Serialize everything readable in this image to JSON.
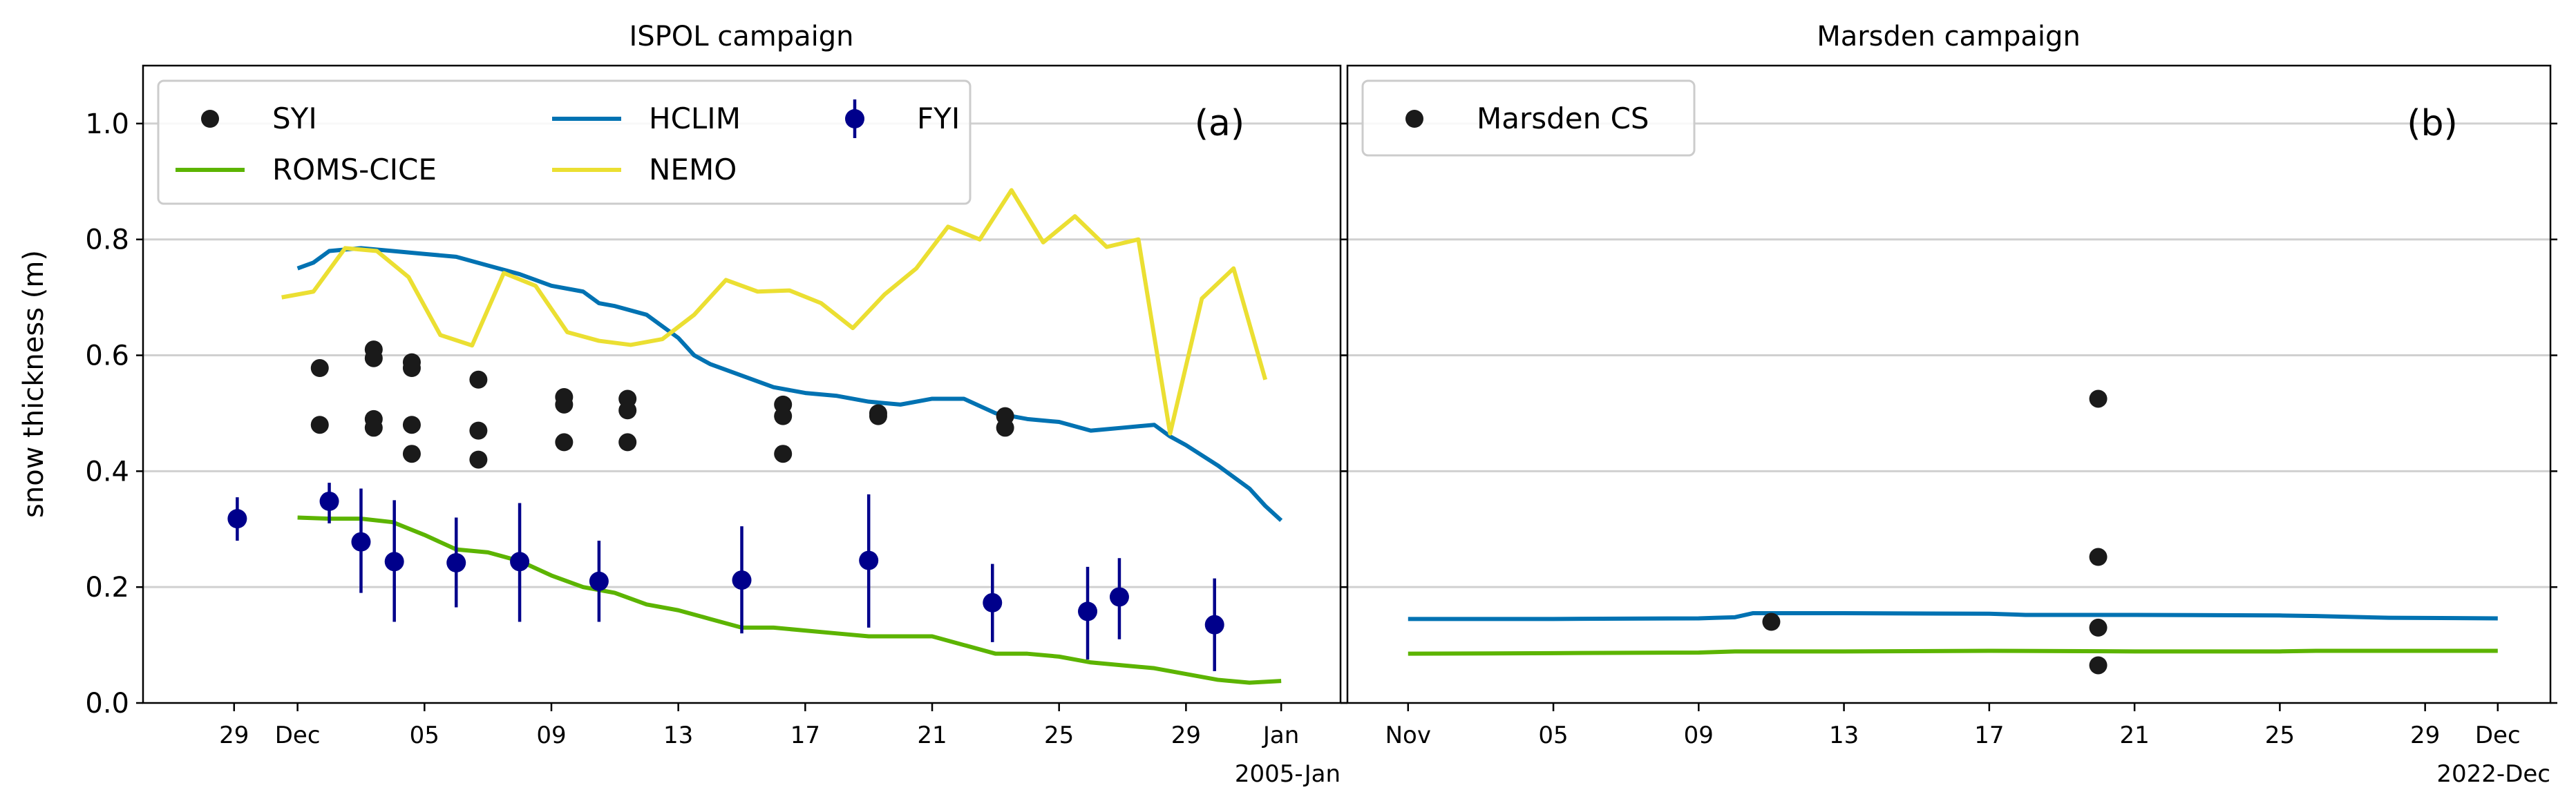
{
  "colors": {
    "SYI": "#1a1a1a",
    "FYI": "#00008b",
    "HCLIM": "#0072b2",
    "ROMS-CICE": "#5cb400",
    "NEMO": "#ebdf32",
    "Marsden CS": "#1a1a1a",
    "grid": "#d0d0d0"
  },
  "chart_data": [
    {
      "type": "line",
      "title": "ISPOL campaign",
      "panel_label": "(a)",
      "ylabel": "snow thickness (m)",
      "xlabel": "",
      "x_units": "days since 2004-12-01",
      "xlim": [
        -4.87,
        32.87
      ],
      "ylim": [
        0,
        1.1
      ],
      "yticks": [
        0.0,
        0.2,
        0.4,
        0.6,
        0.8,
        1.0
      ],
      "ytick_labels": [
        "0.0",
        "0.2",
        "0.4",
        "0.6",
        "0.8",
        "1.0"
      ],
      "xticks": [
        -2,
        0,
        4,
        8,
        12,
        16,
        20,
        24,
        28,
        31
      ],
      "xtick_labels": [
        "29",
        "Dec",
        "05",
        "09",
        "13",
        "17",
        "21",
        "25",
        "29",
        "Jan"
      ],
      "x_offset_label": "2005-Jan",
      "grid": "y",
      "legend": {
        "placement": "upper-left",
        "columns": 3,
        "entries": [
          "SYI",
          "ROMS-CICE",
          "HCLIM",
          "NEMO",
          "FYI"
        ]
      },
      "series": [
        {
          "name": "HCLIM",
          "kind": "line",
          "x": [
            0,
            0.5,
            1,
            2,
            3,
            4,
            5,
            6,
            7,
            8,
            9,
            9.5,
            10,
            11,
            12,
            12.5,
            13,
            14,
            15,
            16,
            17,
            18,
            19,
            20,
            21,
            22,
            23,
            24,
            25,
            26,
            27,
            27.5,
            28,
            29,
            30,
            30.5,
            31
          ],
          "y": [
            0.75,
            0.76,
            0.78,
            0.785,
            0.78,
            0.775,
            0.77,
            0.755,
            0.74,
            0.72,
            0.71,
            0.69,
            0.685,
            0.67,
            0.63,
            0.6,
            0.585,
            0.565,
            0.545,
            0.535,
            0.53,
            0.52,
            0.515,
            0.525,
            0.525,
            0.5,
            0.49,
            0.485,
            0.47,
            0.475,
            0.48,
            0.46,
            0.445,
            0.41,
            0.37,
            0.34,
            0.315
          ]
        },
        {
          "name": "ROMS-CICE",
          "kind": "line",
          "x": [
            0,
            1,
            2,
            3,
            4,
            5,
            6,
            7,
            8,
            9,
            10,
            11,
            12,
            13,
            14,
            15,
            16,
            17,
            18,
            19,
            20,
            21,
            22,
            23,
            24,
            25,
            26,
            27,
            28,
            29,
            30,
            31
          ],
          "y": [
            0.32,
            0.318,
            0.318,
            0.312,
            0.29,
            0.265,
            0.26,
            0.245,
            0.22,
            0.2,
            0.19,
            0.17,
            0.16,
            0.145,
            0.13,
            0.13,
            0.125,
            0.12,
            0.115,
            0.115,
            0.115,
            0.1,
            0.085,
            0.085,
            0.08,
            0.07,
            0.065,
            0.06,
            0.05,
            0.04,
            0.035,
            0.038
          ]
        },
        {
          "name": "NEMO",
          "kind": "line",
          "x": [
            -0.5,
            0.5,
            1.5,
            2.5,
            3.5,
            4.5,
            5.5,
            6.5,
            7.5,
            8.5,
            9.5,
            10.5,
            11.5,
            12.5,
            13.5,
            14.5,
            15.5,
            16.5,
            17.5,
            18.5,
            19.5,
            20.5,
            21.5,
            22.5,
            23.5,
            24.5,
            25.5,
            26.5,
            27.5,
            28.5,
            29.5,
            30.5
          ],
          "y": [
            0.7,
            0.71,
            0.785,
            0.78,
            0.735,
            0.635,
            0.617,
            0.742,
            0.72,
            0.64,
            0.625,
            0.618,
            0.628,
            0.67,
            0.73,
            0.71,
            0.712,
            0.69,
            0.647,
            0.705,
            0.75,
            0.822,
            0.8,
            0.885,
            0.795,
            0.84,
            0.787,
            0.8,
            0.465,
            0.698,
            0.75,
            0.558
          ]
        },
        {
          "name": "SYI",
          "kind": "scatter",
          "x": [
            0.7,
            0.7,
            2.4,
            2.4,
            2.4,
            2.4,
            3.6,
            3.6,
            3.6,
            3.6,
            5.7,
            5.7,
            5.7,
            8.4,
            8.4,
            8.4,
            10.4,
            10.4,
            10.4,
            15.3,
            15.3,
            15.3,
            18.3,
            18.3,
            22.3,
            22.3
          ],
          "y": [
            0.578,
            0.48,
            0.61,
            0.595,
            0.49,
            0.475,
            0.588,
            0.578,
            0.48,
            0.43,
            0.558,
            0.47,
            0.42,
            0.528,
            0.515,
            0.45,
            0.525,
            0.505,
            0.45,
            0.515,
            0.495,
            0.43,
            0.5,
            0.495,
            0.495,
            0.475
          ]
        },
        {
          "name": "FYI",
          "kind": "errorbar",
          "x": [
            -1.9,
            1.0,
            2.0,
            3.05,
            5.0,
            7.0,
            9.5,
            14.0,
            18.0,
            21.9,
            24.9,
            25.9,
            28.9
          ],
          "y": [
            0.318,
            0.348,
            0.278,
            0.244,
            0.242,
            0.244,
            0.21,
            0.212,
            0.246,
            0.173,
            0.158,
            0.183,
            0.135
          ],
          "ylow": [
            0.28,
            0.31,
            0.19,
            0.14,
            0.165,
            0.14,
            0.14,
            0.12,
            0.13,
            0.105,
            0.075,
            0.11,
            0.055
          ],
          "yhigh": [
            0.355,
            0.38,
            0.37,
            0.35,
            0.32,
            0.345,
            0.28,
            0.305,
            0.36,
            0.24,
            0.235,
            0.25,
            0.215
          ]
        }
      ]
    },
    {
      "type": "line",
      "title": "Marsden campaign",
      "panel_label": "(b)",
      "ylabel": "",
      "x_units": "days since 2022-11-01",
      "xlim": [
        -1.67,
        31.45
      ],
      "ylim": [
        0,
        1.1
      ],
      "yticks": [
        0.0,
        0.2,
        0.4,
        0.6,
        0.8,
        1.0
      ],
      "xticks": [
        0,
        4,
        8,
        12,
        16,
        20,
        24,
        28,
        30
      ],
      "xtick_labels": [
        "Nov",
        "05",
        "09",
        "13",
        "17",
        "21",
        "25",
        "29",
        "Dec"
      ],
      "x_offset_label": "2022-Dec",
      "grid": "y",
      "legend": {
        "placement": "upper-left",
        "columns": 1,
        "entries": [
          "Marsden CS"
        ]
      },
      "series": [
        {
          "name": "HCLIM",
          "kind": "line",
          "x": [
            0,
            4,
            8,
            8.5,
            9,
            9.5,
            12,
            16,
            17,
            20,
            24,
            25,
            27,
            30
          ],
          "y": [
            0.145,
            0.145,
            0.146,
            0.147,
            0.148,
            0.155,
            0.155,
            0.154,
            0.152,
            0.152,
            0.151,
            0.15,
            0.147,
            0.146
          ]
        },
        {
          "name": "ROMS-CICE",
          "kind": "line",
          "x": [
            0,
            4,
            8,
            9,
            12,
            16,
            20,
            24,
            25,
            30
          ],
          "y": [
            0.085,
            0.086,
            0.087,
            0.089,
            0.089,
            0.09,
            0.089,
            0.089,
            0.09,
            0.09
          ]
        },
        {
          "name": "Marsden CS",
          "kind": "scatter",
          "x": [
            10,
            19,
            19,
            19,
            19
          ],
          "y": [
            0.14,
            0.525,
            0.252,
            0.13,
            0.065
          ]
        }
      ]
    }
  ]
}
